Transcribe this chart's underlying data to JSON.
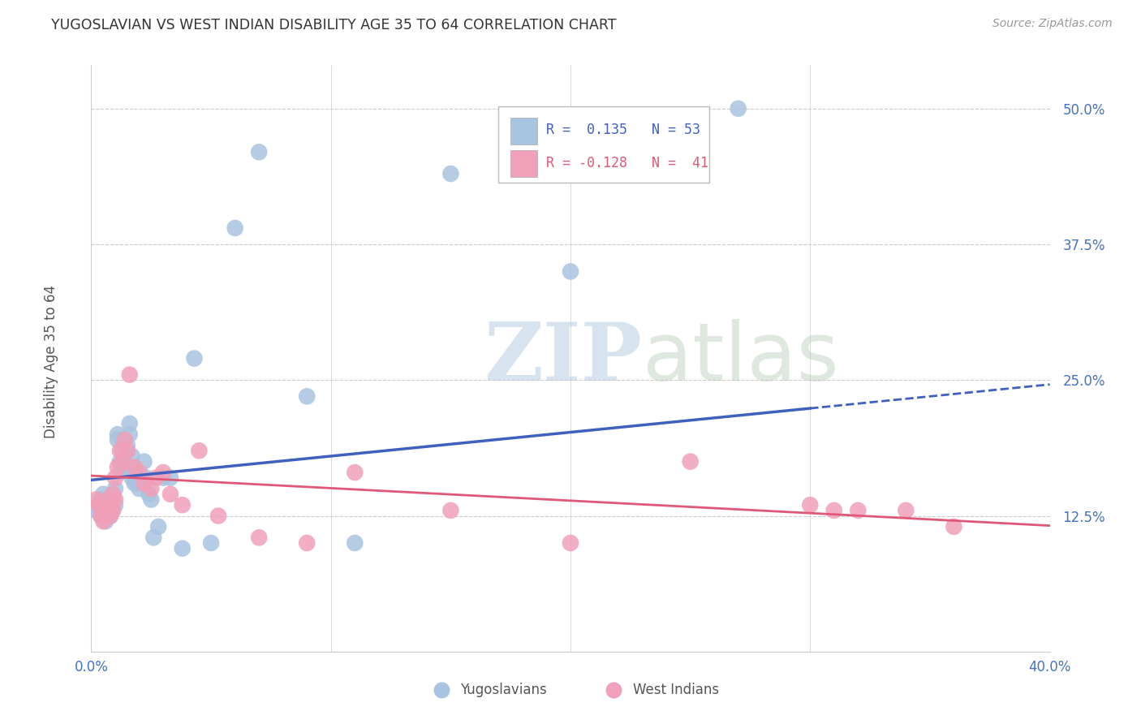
{
  "title": "YUGOSLAVIAN VS WEST INDIAN DISABILITY AGE 35 TO 64 CORRELATION CHART",
  "source": "Source: ZipAtlas.com",
  "ylabel": "Disability Age 35 to 64",
  "xlim": [
    0.0,
    0.4
  ],
  "ylim": [
    0.0,
    0.54
  ],
  "yticks": [
    0.0,
    0.125,
    0.25,
    0.375,
    0.5
  ],
  "ytick_labels": [
    "",
    "12.5%",
    "25.0%",
    "37.5%",
    "50.0%"
  ],
  "xticks": [
    0.0,
    0.1,
    0.2,
    0.3,
    0.4
  ],
  "xtick_labels": [
    "0.0%",
    "",
    "",
    "",
    "40.0%"
  ],
  "grid_color": "#cccccc",
  "background_color": "#ffffff",
  "blue_color": "#a8c4e0",
  "pink_color": "#f0a0b8",
  "line_blue": "#4060c0",
  "line_pink": "#e05878",
  "legend_r_blue": "0.135",
  "legend_n_blue": "53",
  "legend_r_pink": "-0.128",
  "legend_n_pink": "41",
  "yug_x": [
    0.002,
    0.003,
    0.004,
    0.004,
    0.005,
    0.005,
    0.006,
    0.006,
    0.007,
    0.007,
    0.008,
    0.008,
    0.009,
    0.009,
    0.01,
    0.01,
    0.011,
    0.011,
    0.012,
    0.012,
    0.013,
    0.013,
    0.014,
    0.014,
    0.015,
    0.015,
    0.016,
    0.016,
    0.017,
    0.017,
    0.018,
    0.018,
    0.019,
    0.02,
    0.021,
    0.022,
    0.023,
    0.024,
    0.025,
    0.026,
    0.028,
    0.03,
    0.033,
    0.038,
    0.043,
    0.05,
    0.06,
    0.07,
    0.09,
    0.11,
    0.15,
    0.2,
    0.27
  ],
  "yug_y": [
    0.13,
    0.135,
    0.14,
    0.125,
    0.13,
    0.145,
    0.12,
    0.135,
    0.14,
    0.13,
    0.125,
    0.14,
    0.13,
    0.145,
    0.135,
    0.15,
    0.195,
    0.2,
    0.175,
    0.165,
    0.195,
    0.185,
    0.17,
    0.175,
    0.185,
    0.19,
    0.2,
    0.21,
    0.18,
    0.16,
    0.155,
    0.165,
    0.155,
    0.15,
    0.16,
    0.175,
    0.16,
    0.145,
    0.14,
    0.105,
    0.115,
    0.16,
    0.16,
    0.095,
    0.27,
    0.1,
    0.39,
    0.46,
    0.235,
    0.1,
    0.44,
    0.35,
    0.5
  ],
  "wi_x": [
    0.002,
    0.003,
    0.004,
    0.005,
    0.005,
    0.006,
    0.007,
    0.007,
    0.008,
    0.008,
    0.009,
    0.009,
    0.01,
    0.01,
    0.011,
    0.012,
    0.013,
    0.014,
    0.015,
    0.016,
    0.018,
    0.02,
    0.022,
    0.025,
    0.027,
    0.03,
    0.033,
    0.038,
    0.045,
    0.053,
    0.07,
    0.09,
    0.11,
    0.15,
    0.2,
    0.25,
    0.3,
    0.31,
    0.32,
    0.34,
    0.36
  ],
  "wi_y": [
    0.14,
    0.135,
    0.125,
    0.13,
    0.12,
    0.125,
    0.14,
    0.13,
    0.135,
    0.125,
    0.13,
    0.145,
    0.14,
    0.16,
    0.17,
    0.185,
    0.175,
    0.195,
    0.185,
    0.255,
    0.17,
    0.165,
    0.155,
    0.15,
    0.16,
    0.165,
    0.145,
    0.135,
    0.185,
    0.125,
    0.105,
    0.1,
    0.165,
    0.13,
    0.1,
    0.175,
    0.135,
    0.13,
    0.13,
    0.13,
    0.115
  ]
}
